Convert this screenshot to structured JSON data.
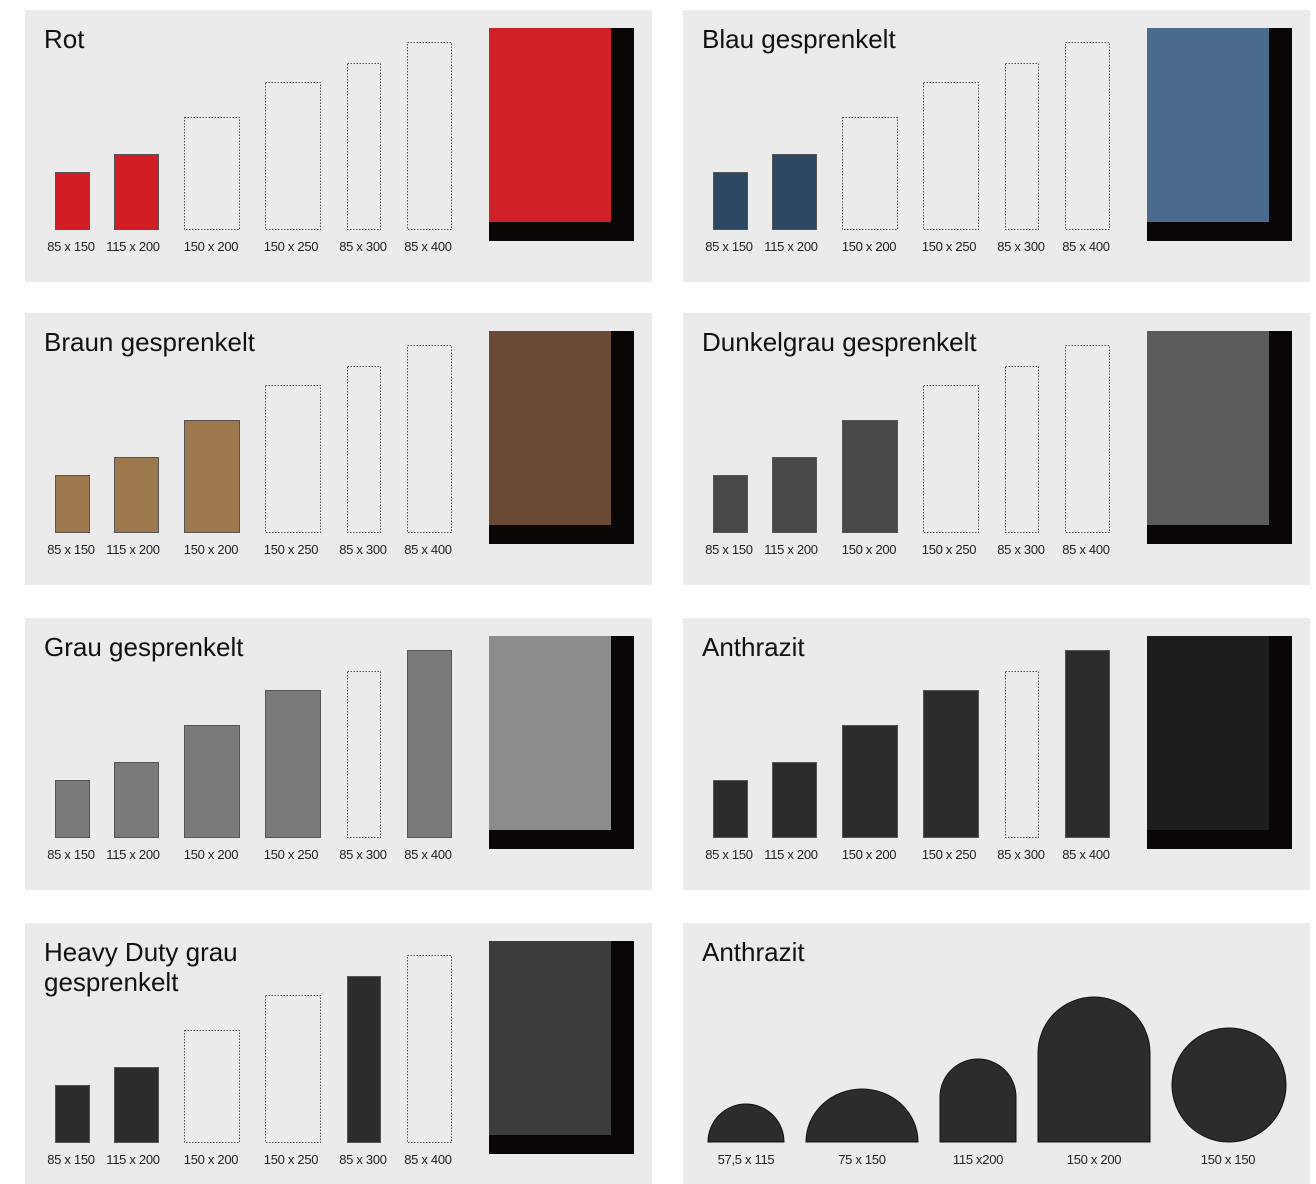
{
  "panels": [
    {
      "title": "Rot",
      "color": "#d21d24",
      "swatch": "#cf2127",
      "sizes": [
        {
          "label": "85 x 150",
          "available": true
        },
        {
          "label": "115 x 200",
          "available": true
        },
        {
          "label": "150 x 200",
          "available": false
        },
        {
          "label": "150 x 250",
          "available": false
        },
        {
          "label": "85 x 300",
          "available": false
        },
        {
          "label": "85 x 400",
          "available": false
        }
      ]
    },
    {
      "title": "Blau gesprenkelt",
      "color": "#2c4862",
      "swatch": "#4b6b8e",
      "sizes": [
        {
          "label": "85 x 150",
          "available": true
        },
        {
          "label": "115 x 200",
          "available": true
        },
        {
          "label": "150 x 200",
          "available": false
        },
        {
          "label": "150 x 250",
          "available": false
        },
        {
          "label": "85 x 300",
          "available": false
        },
        {
          "label": "85 x 400",
          "available": false
        }
      ]
    },
    {
      "title": "Braun gesprenkelt",
      "color": "#9c784c",
      "swatch": "#6b4a35",
      "sizes": [
        {
          "label": "85 x 150",
          "available": true
        },
        {
          "label": "115 x 200",
          "available": true
        },
        {
          "label": "150 x 200",
          "available": true
        },
        {
          "label": "150 x 250",
          "available": false
        },
        {
          "label": "85 x 300",
          "available": false
        },
        {
          "label": "85 x 400",
          "available": false
        }
      ]
    },
    {
      "title": "Dunkelgrau gesprenkelt",
      "color": "#47484a",
      "swatch": "#5a5b5d",
      "sizes": [
        {
          "label": "85 x 150",
          "available": true
        },
        {
          "label": "115 x 200",
          "available": true
        },
        {
          "label": "150 x 200",
          "available": true
        },
        {
          "label": "150 x 250",
          "available": false
        },
        {
          "label": "85 x 300",
          "available": false
        },
        {
          "label": "85 x 400",
          "available": false
        }
      ]
    },
    {
      "title": "Grau gesprenkelt",
      "color": "#7a7a7b",
      "swatch": "#8c8c8c",
      "sizes": [
        {
          "label": "85 x 150",
          "available": true
        },
        {
          "label": "115 x 200",
          "available": true
        },
        {
          "label": "150 x 200",
          "available": true
        },
        {
          "label": "150 x 250",
          "available": true
        },
        {
          "label": "85 x 300",
          "available": false
        },
        {
          "label": "85 x 400",
          "available": true
        }
      ]
    },
    {
      "title": "Anthrazit",
      "color": "#2b2c2e",
      "swatch": "#1b1d1f",
      "sizes": [
        {
          "label": "85 x 150",
          "available": true
        },
        {
          "label": "115 x 200",
          "available": true
        },
        {
          "label": "150 x 200",
          "available": true
        },
        {
          "label": "150 x 250",
          "available": true
        },
        {
          "label": "85 x 300",
          "available": false
        },
        {
          "label": "85 x 400",
          "available": true
        }
      ]
    },
    {
      "title": "Heavy Duty grau gesprenkelt",
      "color": "#2b2c2e",
      "swatch": "#3b3c3d",
      "sizes": [
        {
          "label": "85 x 150",
          "available": true
        },
        {
          "label": "115 x 200",
          "available": true
        },
        {
          "label": "150 x 200",
          "available": false
        },
        {
          "label": "150 x 250",
          "available": false
        },
        {
          "label": "85 x 300",
          "available": true
        },
        {
          "label": "85 x 400",
          "available": false
        }
      ]
    }
  ],
  "shaped_panel": {
    "title": "Anthrazit",
    "color": "#2b2c2e",
    "shapes": [
      {
        "label": "57,5 x 115",
        "shape": "half-round"
      },
      {
        "label": "75 x 150",
        "shape": "half-round"
      },
      {
        "label": "115 x200",
        "shape": "half-round"
      },
      {
        "label": "150 x 200",
        "shape": "half-round"
      },
      {
        "label": "150 x 150",
        "shape": "round"
      }
    ]
  }
}
